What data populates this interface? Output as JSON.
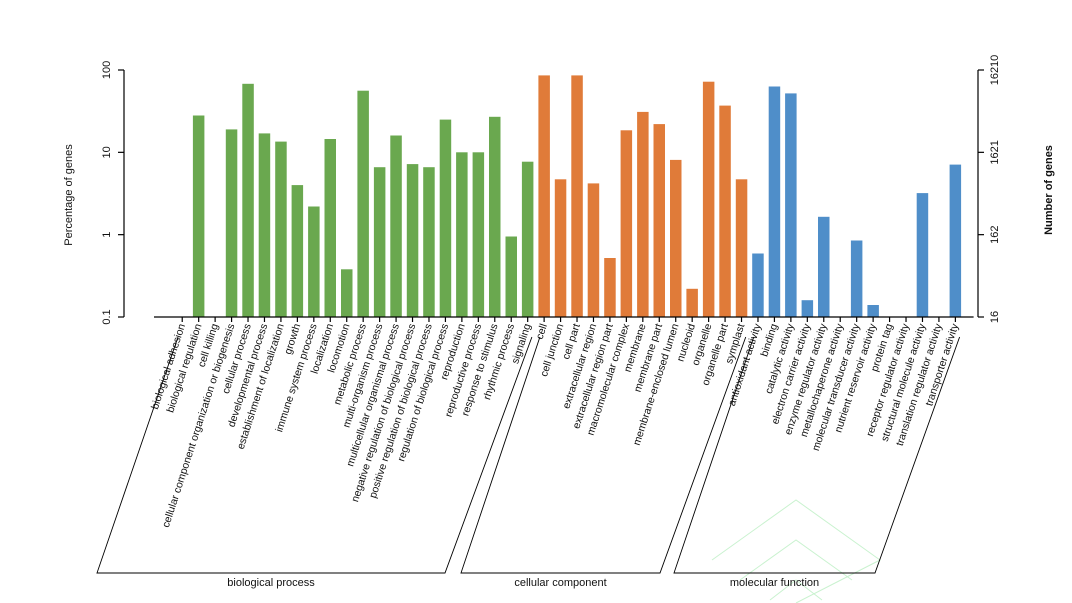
{
  "chart_data": {
    "type": "bar",
    "scale": "log",
    "ylim": [
      0.1,
      100
    ],
    "y_ticks": [
      "0.1",
      "1",
      "10",
      "100"
    ],
    "y2_ticks": [
      "16",
      "162",
      "1621",
      "16210"
    ],
    "ylabel": "Percentage of genes",
    "y2label": "Number of genes",
    "grid": false,
    "groups": [
      {
        "name": "biological process",
        "color": "#6aa84f",
        "categories": [
          "biological adhesion",
          "biological regulation",
          "cell killing",
          "cellular component organization or biogenesis",
          "cellular process",
          "developmental process",
          "establishment of localization",
          "growth",
          "immune system process",
          "localization",
          "locomotion",
          "metabolic process",
          "multi-organism process",
          "multicellular organismal process",
          "negative regulation of biological process",
          "positive regulation of biological process",
          "regulation of biological process",
          "reproduction",
          "reproductive process",
          "response to stimulus",
          "rhythmic process",
          "signaling"
        ],
        "values": [
          null,
          28,
          null,
          19,
          68,
          17,
          13.5,
          4,
          2.2,
          14.5,
          0.38,
          56,
          6.6,
          16,
          7.2,
          6.6,
          25,
          10,
          10,
          27,
          0.95,
          7.7
        ]
      },
      {
        "name": "cellular component",
        "color": "#e07b39",
        "categories": [
          "cell",
          "cell junction",
          "cell part",
          "extracellular region",
          "extracellular region part",
          "macromolecular complex",
          "membrane",
          "membrane part",
          "membrane-enclosed lumen",
          "nucleoid",
          "organelle",
          "organelle part",
          "symplast"
        ],
        "values": [
          86,
          4.7,
          86,
          4.2,
          0.52,
          18.5,
          31,
          22,
          8.1,
          0.22,
          72,
          37,
          4.7
        ]
      },
      {
        "name": "molecular function",
        "color": "#4f8ec9",
        "categories": [
          "antioxidant activity",
          "binding",
          "catalytic activity",
          "electron carrier activity",
          "enzyme regulator activity",
          "metallochaperone activity",
          "molecular transducer activity",
          "nutrient reservoir activity",
          "protein tag",
          "receptor regulator activity",
          "structural molecule activity",
          "translation regulator activity",
          "transporter activity"
        ],
        "values": [
          0.59,
          63,
          52,
          0.16,
          1.65,
          null,
          0.85,
          0.14,
          null,
          null,
          3.2,
          null,
          7.1
        ]
      }
    ]
  }
}
